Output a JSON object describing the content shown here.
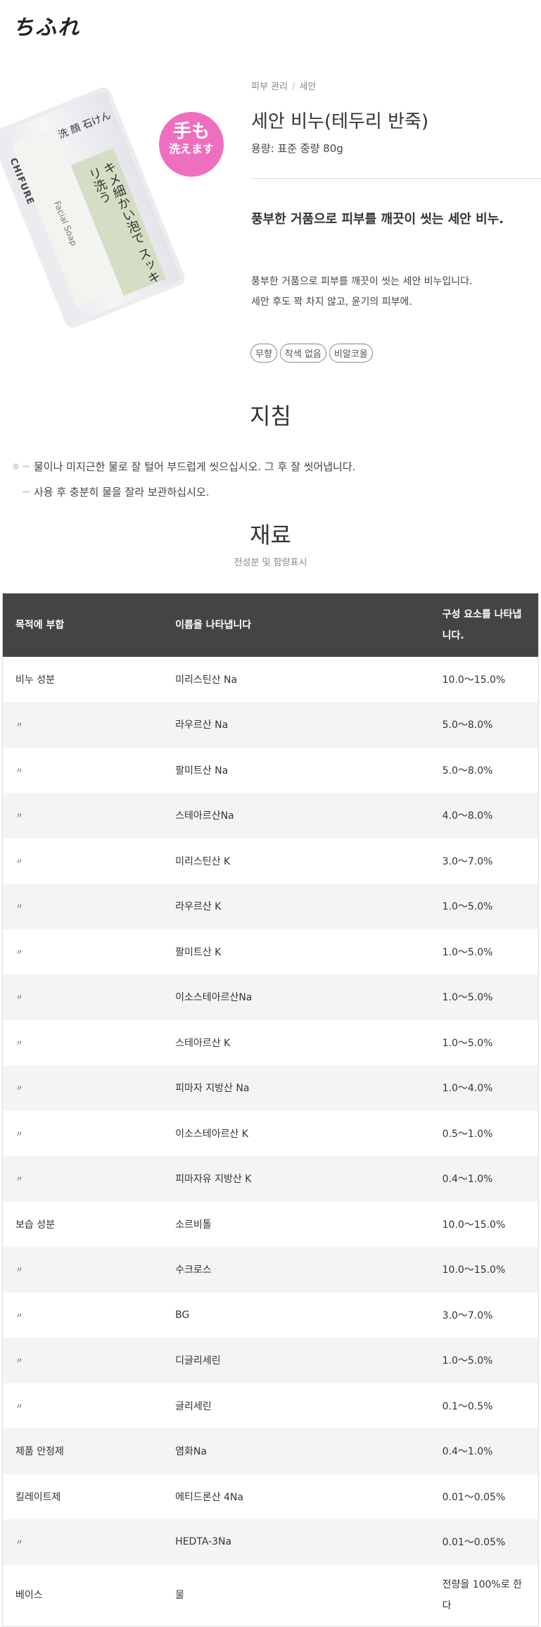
{
  "brand": {
    "logo_text": "ちふれ"
  },
  "product_image": {
    "brand": "CHIFURE",
    "top_label": "洗 顔 石けん",
    "jp_text": "キメ細かい泡で スッキリ洗う",
    "en_text": "Facial Soap",
    "badge_line1": "手も",
    "badge_line2": "洗えます",
    "badge_color": "#ef6fbf"
  },
  "breadcrumb": [
    "피부 관리",
    "세안"
  ],
  "breadcrumb_sep": "/",
  "product": {
    "title": "세안 비누(테두리 반죽)",
    "volume": "용량: 표준 중량 80g",
    "lead": "풍부한 거품으로 피부를 깨끗이 씻는 세안 비누.",
    "desc_lines": [
      "풍부한 거품으로 피부를 깨끗이 씻는 세안 비누입니다.",
      "세안 후도 꽉 차지 않고, 윤기의 피부에."
    ],
    "tags": [
      "무향",
      "착색 없음",
      "비알코올"
    ]
  },
  "instructions": {
    "title": "지침",
    "items": [
      "물이나 미지근한 물로 잘 털어 부드럽게 씻으십시오. 그 후 잘 씻어냅니다.",
      "사용 후 충분히 물을 잘라 보관하십시오."
    ]
  },
  "ingredients": {
    "title": "재료",
    "subtitle": "전성분 및 함량표시",
    "headers": [
      "목적에 부합",
      "이름을 나타냅니다",
      "구성 요소를 나타냅니다."
    ],
    "rows": [
      [
        "비누 성분",
        "미리스틴산 Na",
        "10.0～15.0%"
      ],
      [
        "〃",
        "라우르산 Na",
        "5.0～8.0%"
      ],
      [
        "〃",
        "팔미트산 Na",
        "5.0～8.0%"
      ],
      [
        "〃",
        "스테아르산Na",
        "4.0～8.0%"
      ],
      [
        "〃",
        "미리스틴산 K",
        "3.0～7.0%"
      ],
      [
        "〃",
        "라우르산 K",
        "1.0～5.0%"
      ],
      [
        "〃",
        "팔미트산 K",
        "1.0～5.0%"
      ],
      [
        "〃",
        "이소스테아르산Na",
        "1.0～5.0%"
      ],
      [
        "〃",
        "스테아르산 K",
        "1.0～5.0%"
      ],
      [
        "〃",
        "피마자 지방산 Na",
        "1.0～4.0%"
      ],
      [
        "〃",
        "이소스테아르산 K",
        "0.5～1.0%"
      ],
      [
        "〃",
        "피마자유 지방산 K",
        "0.4～1.0%"
      ],
      [
        "보습 성분",
        "소르비톨",
        "10.0～15.0%"
      ],
      [
        "〃",
        "수크로스",
        "10.0～15.0%"
      ],
      [
        "〃",
        "BG",
        "3.0～7.0%"
      ],
      [
        "〃",
        "디글리세린",
        "1.0～5.0%"
      ],
      [
        "〃",
        "글리세린",
        "0.1～0.5%"
      ],
      [
        "제품 안정제",
        "염화Na",
        "0.4～1.0%"
      ],
      [
        "킬레이트제",
        "에티드론산 4Na",
        "0.01～0.05%"
      ],
      [
        "〃",
        "HEDTA-3Na",
        "0.01～0.05%"
      ],
      [
        "베이스",
        "물",
        "전량을 100%로 한다"
      ]
    ]
  }
}
